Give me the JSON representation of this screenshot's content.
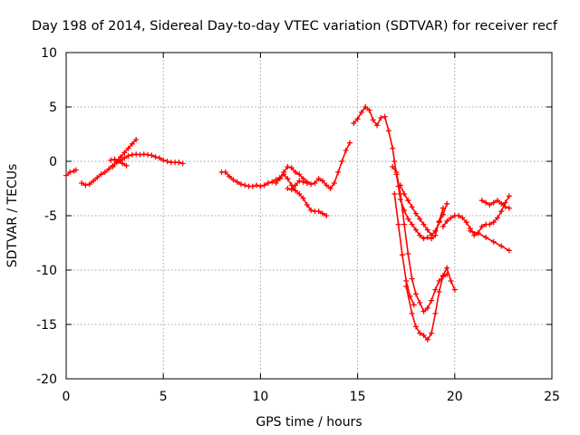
{
  "chart_data": {
    "type": "scatter",
    "title": "Day 198 of 2014, Sidereal Day-to-day VTEC variation (SDTVAR) for receiver recf",
    "xlabel": "GPS time / hours",
    "ylabel": "SDTVAR / TECUs",
    "xlim": [
      0,
      25
    ],
    "ylim": [
      -20,
      10
    ],
    "x_ticks": [
      0,
      5,
      10,
      15,
      20,
      25
    ],
    "y_ticks": [
      -20,
      -15,
      -10,
      -5,
      0,
      5,
      10
    ],
    "grid": true,
    "marker": "plus",
    "color": "#ff0000",
    "series": [
      {
        "x": [
          0.0,
          0.2,
          0.4,
          0.5
        ],
        "y": [
          -1.3,
          -1.0,
          -0.9,
          -0.8
        ]
      },
      {
        "x": [
          0.8,
          1.0,
          1.2,
          1.4,
          1.6,
          1.8,
          2.0,
          2.2,
          2.4,
          2.6,
          2.8,
          3.0,
          3.2,
          3.4,
          3.6,
          3.8,
          4.0,
          4.2,
          4.4,
          4.6,
          4.8,
          5.0,
          5.2,
          5.4,
          5.6,
          5.8,
          6.0
        ],
        "y": [
          -2.0,
          -2.2,
          -2.1,
          -1.8,
          -1.5,
          -1.2,
          -1.0,
          -0.7,
          -0.4,
          -0.1,
          0.1,
          0.3,
          0.5,
          0.6,
          0.65,
          0.6,
          0.65,
          0.6,
          0.55,
          0.4,
          0.3,
          0.1,
          0.0,
          -0.1,
          -0.1,
          -0.1,
          -0.2
        ]
      },
      {
        "x": [
          2.4,
          2.6,
          2.8,
          3.0,
          3.2,
          3.4,
          3.6
        ],
        "y": [
          -0.5,
          0.0,
          0.4,
          0.8,
          1.2,
          1.6,
          2.0
        ]
      },
      {
        "x": [
          2.3,
          2.5,
          2.7,
          2.9,
          3.1
        ],
        "y": [
          0.1,
          0.2,
          0.0,
          -0.2,
          -0.4
        ]
      },
      {
        "x": [
          8.0,
          8.2,
          8.4,
          8.6,
          8.8,
          9.0,
          9.2,
          9.4,
          9.6,
          9.8,
          10.0,
          10.2,
          10.4,
          10.6,
          10.8,
          11.0,
          11.2,
          11.4,
          11.6,
          11.8,
          12.0,
          12.2,
          12.4,
          12.6,
          12.8,
          13.0,
          13.2,
          13.4
        ],
        "y": [
          -1.0,
          -1.0,
          -1.4,
          -1.7,
          -1.9,
          -2.1,
          -2.2,
          -2.3,
          -2.3,
          -2.2,
          -2.3,
          -2.2,
          -2.0,
          -1.9,
          -1.7,
          -1.5,
          -1.2,
          -1.6,
          -2.2,
          -2.7,
          -3.0,
          -3.4,
          -4.0,
          -4.5,
          -4.6,
          -4.6,
          -4.8,
          -5.0
        ]
      },
      {
        "x": [
          10.8,
          11.0,
          11.2,
          11.4,
          11.6,
          11.8,
          12.0,
          12.2,
          12.4,
          12.6,
          12.8,
          13.0,
          13.2,
          13.4,
          13.6,
          13.8,
          14.0,
          14.2,
          14.4,
          14.6
        ],
        "y": [
          -2.0,
          -1.6,
          -1.0,
          -0.5,
          -0.6,
          -1.0,
          -1.2,
          -1.6,
          -1.9,
          -2.1,
          -2.0,
          -1.6,
          -1.8,
          -2.2,
          -2.5,
          -2.0,
          -1.0,
          0.0,
          1.0,
          1.7
        ]
      },
      {
        "x": [
          11.4,
          11.6,
          11.8,
          12.0,
          12.2,
          12.4
        ],
        "y": [
          -2.5,
          -2.6,
          -2.2,
          -1.8,
          -1.9,
          -2.0
        ]
      },
      {
        "x": [
          14.8,
          15.0,
          15.2,
          15.4,
          15.6,
          15.8,
          16.0,
          16.2,
          16.4,
          16.6,
          16.8,
          16.9,
          17.0,
          17.1,
          17.2,
          17.4,
          17.6,
          17.8,
          18.0,
          18.2,
          18.4,
          18.6,
          18.8,
          19.0,
          19.2,
          19.4
        ],
        "y": [
          3.5,
          3.9,
          4.5,
          5.0,
          4.7,
          3.8,
          3.3,
          4.0,
          4.1,
          2.8,
          1.2,
          0.0,
          -1.2,
          -2.3,
          -3.5,
          -4.5,
          -5.3,
          -5.8,
          -6.3,
          -6.8,
          -7.1,
          -7.0,
          -7.1,
          -6.8,
          -5.5,
          -4.3
        ]
      },
      {
        "x": [
          17.2,
          17.4,
          17.6,
          17.8,
          18.0,
          18.2,
          18.4,
          18.6,
          18.8,
          19.0,
          19.2,
          19.4,
          19.6
        ],
        "y": [
          -2.2,
          -3.0,
          -3.6,
          -4.2,
          -4.8,
          -5.3,
          -5.8,
          -6.3,
          -6.8,
          -6.4,
          -5.6,
          -4.9,
          -3.9
        ]
      },
      {
        "x": [
          16.8,
          17.0,
          17.2,
          17.4,
          17.6,
          17.8,
          18.0,
          18.2,
          18.4,
          18.6,
          18.8,
          19.0,
          19.2,
          19.4,
          19.6
        ],
        "y": [
          -0.5,
          -1.0,
          -3.0,
          -5.8,
          -8.5,
          -10.8,
          -12.2,
          -13.0,
          -13.8,
          -13.5,
          -12.8,
          -11.8,
          -11.0,
          -10.6,
          -10.4
        ]
      },
      {
        "x": [
          17.5,
          17.8,
          18.0,
          18.2,
          18.4,
          18.6,
          18.8,
          19.0,
          19.2,
          19.4,
          19.6,
          19.8,
          20.0
        ],
        "y": [
          -11.5,
          -14.0,
          -15.2,
          -15.8,
          -16.0,
          -16.4,
          -15.8,
          -14.0,
          -12.0,
          -10.5,
          -9.8,
          -11.0,
          -11.8
        ]
      },
      {
        "x": [
          16.9,
          17.1,
          17.3,
          17.5,
          17.7,
          17.9
        ],
        "y": [
          -3.0,
          -5.8,
          -8.6,
          -11.0,
          -12.4,
          -13.2
        ]
      },
      {
        "x": [
          19.4,
          19.6,
          19.8,
          20.0,
          20.2,
          20.4,
          20.6,
          20.8,
          21.0,
          21.2,
          21.4,
          21.6,
          21.8,
          22.0,
          22.2,
          22.4,
          22.6,
          22.8
        ],
        "y": [
          -6.0,
          -5.5,
          -5.2,
          -5.0,
          -5.0,
          -5.2,
          -5.6,
          -6.2,
          -6.8,
          -6.6,
          -6.0,
          -5.8,
          -5.8,
          -5.6,
          -5.2,
          -4.6,
          -3.8,
          -3.2
        ]
      },
      {
        "x": [
          20.8,
          21.2,
          21.6,
          22.0,
          22.4,
          22.8
        ],
        "y": [
          -6.4,
          -6.6,
          -7.0,
          -7.4,
          -7.8,
          -8.2
        ]
      },
      {
        "x": [
          21.4,
          21.6,
          21.8,
          22.0,
          22.2,
          22.4,
          22.6,
          22.8
        ],
        "y": [
          -3.6,
          -3.8,
          -4.0,
          -3.8,
          -3.6,
          -3.9,
          -4.2,
          -4.3
        ]
      }
    ]
  }
}
